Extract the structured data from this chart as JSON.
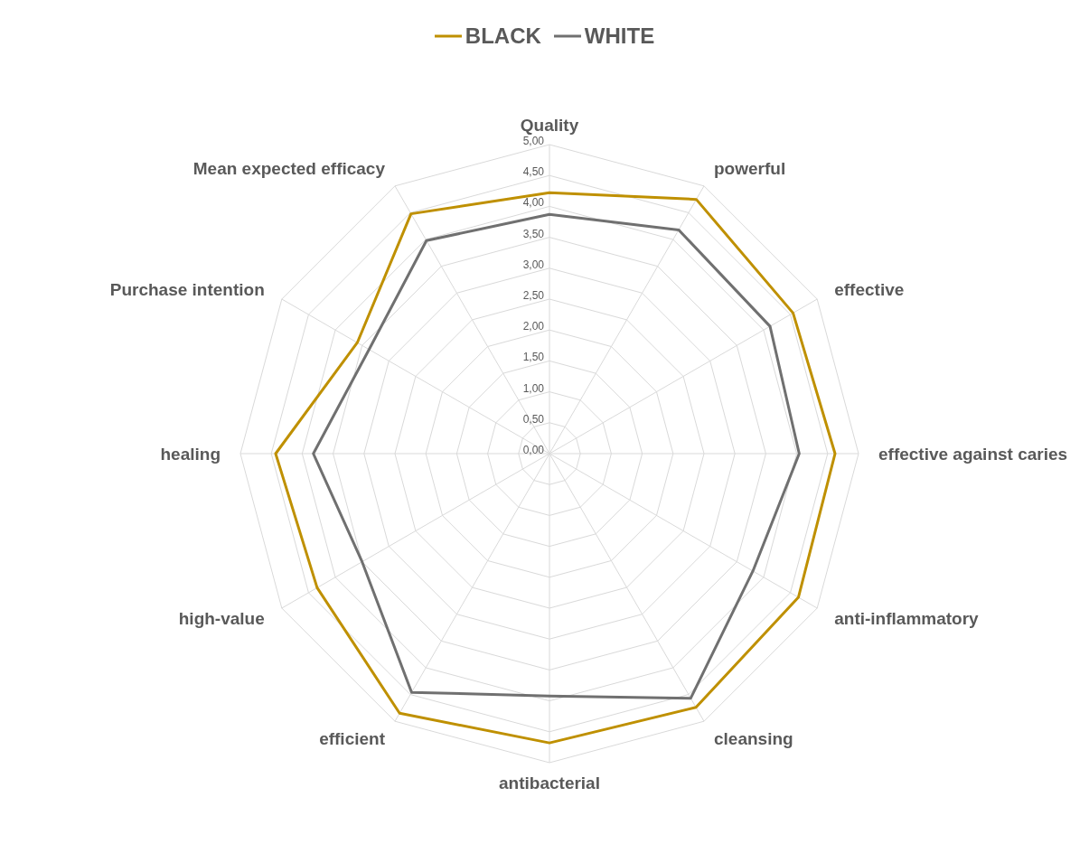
{
  "chart_data": {
    "type": "radar",
    "categories": [
      "Quality",
      "powerful",
      "effective",
      "effective against caries",
      "anti-inflammatory",
      "cleansing",
      "antibacterial",
      "efficient",
      "high-value",
      "healing",
      "Purchase intention",
      "Mean expected efficacy"
    ],
    "series": [
      {
        "name": "BLACK",
        "color": "#bf9000",
        "values": [
          4.22,
          4.75,
          4.55,
          4.62,
          4.65,
          4.74,
          4.68,
          4.85,
          4.34,
          4.43,
          3.59,
          4.48
        ]
      },
      {
        "name": "WHITE",
        "color": "#707070",
        "values": [
          3.87,
          4.18,
          4.12,
          4.04,
          3.8,
          4.57,
          3.92,
          4.46,
          3.5,
          3.82,
          3.37,
          3.98
        ]
      }
    ],
    "ylim": [
      0,
      5
    ],
    "yticks": [
      {
        "value": 0,
        "label": "0,00"
      },
      {
        "value": 0.5,
        "label": "0,50"
      },
      {
        "value": 1,
        "label": "1,00"
      },
      {
        "value": 1.5,
        "label": "1,50"
      },
      {
        "value": 2,
        "label": "2,00"
      },
      {
        "value": 2.5,
        "label": "2,50"
      },
      {
        "value": 3,
        "label": "3,00"
      },
      {
        "value": 3.5,
        "label": "3,50"
      },
      {
        "value": 4,
        "label": "4,00"
      },
      {
        "value": 4.5,
        "label": "4,50"
      },
      {
        "value": 5,
        "label": "5,00"
      }
    ],
    "grid": true,
    "legend": "top",
    "marker": "none"
  }
}
